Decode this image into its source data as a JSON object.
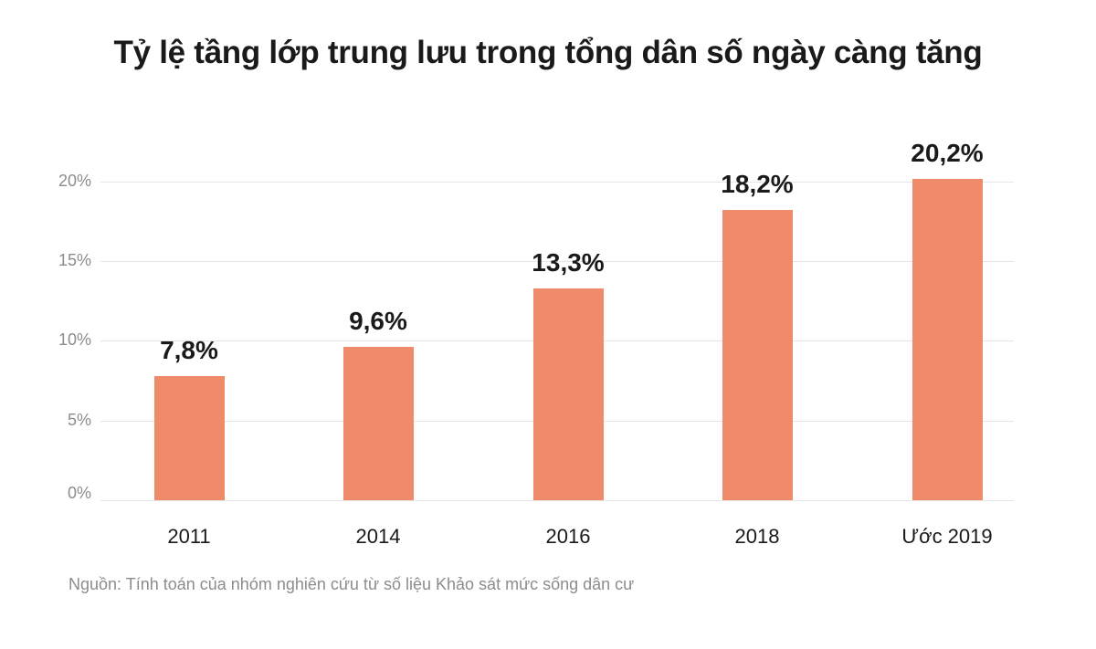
{
  "chart_data": {
    "type": "bar",
    "title": "Tỷ lệ tầng lớp trung lưu trong tổng dân số ngày càng tăng",
    "categories": [
      "2011",
      "2014",
      "2016",
      "2018",
      "Ước 2019"
    ],
    "values": [
      7.8,
      9.6,
      13.3,
      18.2,
      20.2
    ],
    "value_labels": [
      "7,8%",
      "9,6%",
      "13,3%",
      "18,2%",
      "20,2%"
    ],
    "xlabel": "",
    "ylabel": "",
    "ylim": [
      0,
      20
    ],
    "yticks": [
      "0%",
      "5%",
      "10%",
      "15%",
      "20%"
    ],
    "grid": true,
    "legend": null,
    "bar_color": "#ef8b6a",
    "source": "Nguồn: Tính toán của nhóm nghiên cứu từ số liệu Khảo sát mức sống dân cư"
  }
}
